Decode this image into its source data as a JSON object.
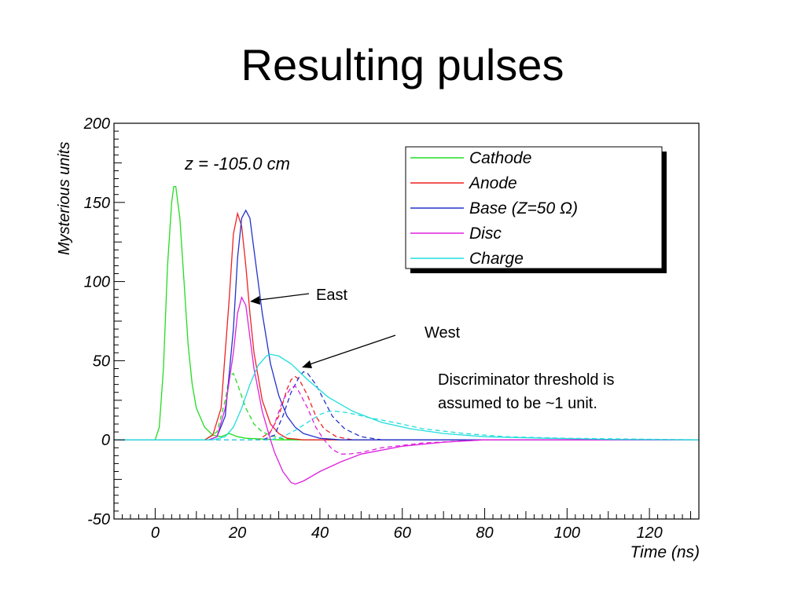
{
  "slide": {
    "title": "Resulting pulses",
    "annotations": {
      "east": "East",
      "west": "West",
      "threshold_line1": "Discriminator threshold is",
      "threshold_line2": "assumed to be ~1 unit."
    }
  },
  "chart_data": {
    "type": "line",
    "inner_label": "z = -105.0 cm",
    "xlabel": "Time  (ns)",
    "ylabel": "Mysterious units",
    "xlim": [
      -10,
      132
    ],
    "ylim": [
      -50,
      200
    ],
    "xticks": [
      "0",
      "20",
      "40",
      "60",
      "80",
      "100",
      "120"
    ],
    "yticks": [
      "-50",
      "0",
      "50",
      "100",
      "150",
      "200"
    ],
    "legend_position": "top-right",
    "grid": false,
    "legend": [
      {
        "label": "Cathode",
        "color": "#22dd22"
      },
      {
        "label": "Anode",
        "color": "#ee2222"
      },
      {
        "label": "Base  (Z=50 Ω)",
        "color": "#2233cc"
      },
      {
        "label": "Disc",
        "color": "#dd22dd"
      },
      {
        "label": "Charge",
        "color": "#22dddd"
      }
    ],
    "series": [
      {
        "name": "Cathode",
        "color": "#22dd22",
        "style": "solid",
        "points": [
          [
            -10,
            0
          ],
          [
            0,
            0
          ],
          [
            1,
            8
          ],
          [
            2,
            45
          ],
          [
            3,
            110
          ],
          [
            4,
            150
          ],
          [
            4.5,
            160
          ],
          [
            5,
            160
          ],
          [
            6,
            140
          ],
          [
            7,
            100
          ],
          [
            8,
            60
          ],
          [
            9,
            35
          ],
          [
            10,
            20
          ],
          [
            12,
            8
          ],
          [
            14,
            3
          ],
          [
            16,
            2
          ],
          [
            18,
            4
          ],
          [
            20,
            2
          ],
          [
            22,
            1
          ],
          [
            30,
            0
          ],
          [
            132,
            0
          ]
        ]
      },
      {
        "name": "Cathode",
        "color": "#22dd22",
        "style": "dashed",
        "points": [
          [
            -10,
            0
          ],
          [
            12,
            0
          ],
          [
            15,
            5
          ],
          [
            17,
            25
          ],
          [
            18,
            40
          ],
          [
            19,
            42
          ],
          [
            20,
            35
          ],
          [
            22,
            20
          ],
          [
            24,
            10
          ],
          [
            26,
            5
          ],
          [
            28,
            3
          ],
          [
            30,
            1
          ],
          [
            34,
            0
          ],
          [
            132,
            0
          ]
        ]
      },
      {
        "name": "Anode",
        "color": "#ee2222",
        "style": "solid",
        "points": [
          [
            -10,
            0
          ],
          [
            12,
            0
          ],
          [
            14,
            3
          ],
          [
            16,
            20
          ],
          [
            18,
            90
          ],
          [
            19,
            130
          ],
          [
            20,
            143
          ],
          [
            21,
            135
          ],
          [
            22,
            110
          ],
          [
            23,
            80
          ],
          [
            24,
            55
          ],
          [
            26,
            25
          ],
          [
            28,
            10
          ],
          [
            30,
            4
          ],
          [
            32,
            1
          ],
          [
            36,
            0
          ],
          [
            132,
            0
          ]
        ]
      },
      {
        "name": "Anode",
        "color": "#ee2222",
        "style": "dashed",
        "points": [
          [
            -10,
            0
          ],
          [
            25,
            0
          ],
          [
            28,
            5
          ],
          [
            30,
            15
          ],
          [
            32,
            32
          ],
          [
            33,
            38
          ],
          [
            34,
            40
          ],
          [
            35,
            38
          ],
          [
            37,
            28
          ],
          [
            39,
            15
          ],
          [
            41,
            7
          ],
          [
            44,
            2
          ],
          [
            48,
            0
          ],
          [
            132,
            0
          ]
        ]
      },
      {
        "name": "Base  (Z=50 Ω)",
        "color": "#2233cc",
        "style": "solid",
        "points": [
          [
            -10,
            0
          ],
          [
            13,
            0
          ],
          [
            15,
            2
          ],
          [
            17,
            15
          ],
          [
            19,
            70
          ],
          [
            20,
            115
          ],
          [
            21,
            140
          ],
          [
            22,
            145
          ],
          [
            23,
            140
          ],
          [
            24,
            120
          ],
          [
            26,
            80
          ],
          [
            28,
            48
          ],
          [
            30,
            28
          ],
          [
            32,
            15
          ],
          [
            34,
            8
          ],
          [
            36,
            4
          ],
          [
            40,
            1
          ],
          [
            45,
            0
          ],
          [
            132,
            0
          ]
        ]
      },
      {
        "name": "Base  (Z=50 Ω)",
        "color": "#2233cc",
        "style": "dashed",
        "points": [
          [
            -10,
            0
          ],
          [
            26,
            0
          ],
          [
            29,
            3
          ],
          [
            31,
            15
          ],
          [
            33,
            30
          ],
          [
            35,
            40
          ],
          [
            36,
            43
          ],
          [
            37,
            42
          ],
          [
            39,
            35
          ],
          [
            41,
            25
          ],
          [
            43,
            15
          ],
          [
            46,
            7
          ],
          [
            50,
            2
          ],
          [
            55,
            0
          ],
          [
            132,
            0
          ]
        ]
      },
      {
        "name": "Disc",
        "color": "#dd22dd",
        "style": "solid",
        "points": [
          [
            -10,
            0
          ],
          [
            13,
            0
          ],
          [
            15,
            2
          ],
          [
            17,
            20
          ],
          [
            19,
            55
          ],
          [
            20,
            80
          ],
          [
            21,
            90
          ],
          [
            22,
            85
          ],
          [
            23,
            65
          ],
          [
            24,
            45
          ],
          [
            26,
            18
          ],
          [
            28,
            0
          ],
          [
            29,
            -8
          ],
          [
            31,
            -20
          ],
          [
            33,
            -27
          ],
          [
            34,
            -28
          ],
          [
            36,
            -26
          ],
          [
            40,
            -20
          ],
          [
            45,
            -14
          ],
          [
            50,
            -9
          ],
          [
            60,
            -4
          ],
          [
            70,
            -1.5
          ],
          [
            80,
            0
          ],
          [
            132,
            0
          ]
        ]
      },
      {
        "name": "Disc",
        "color": "#dd22dd",
        "style": "dashed",
        "points": [
          [
            -10,
            0
          ],
          [
            27,
            0
          ],
          [
            29,
            10
          ],
          [
            31,
            25
          ],
          [
            33,
            33
          ],
          [
            34,
            34
          ],
          [
            35,
            30
          ],
          [
            37,
            20
          ],
          [
            39,
            8
          ],
          [
            41,
            0
          ],
          [
            43,
            -6
          ],
          [
            45,
            -9
          ],
          [
            47,
            -9
          ],
          [
            50,
            -8
          ],
          [
            55,
            -5
          ],
          [
            65,
            -2
          ],
          [
            80,
            0
          ],
          [
            132,
            0
          ]
        ]
      },
      {
        "name": "Charge",
        "color": "#22dddd",
        "style": "solid",
        "points": [
          [
            -10,
            0
          ],
          [
            14,
            0
          ],
          [
            17,
            2
          ],
          [
            19,
            8
          ],
          [
            21,
            20
          ],
          [
            23,
            35
          ],
          [
            25,
            47
          ],
          [
            27,
            53
          ],
          [
            28,
            54
          ],
          [
            30,
            53
          ],
          [
            33,
            48
          ],
          [
            37,
            38
          ],
          [
            42,
            27
          ],
          [
            48,
            18
          ],
          [
            55,
            11
          ],
          [
            62,
            7
          ],
          [
            70,
            4
          ],
          [
            80,
            2
          ],
          [
            95,
            1
          ],
          [
            110,
            0.3
          ],
          [
            132,
            0
          ]
        ]
      },
      {
        "name": "Charge",
        "color": "#22dddd",
        "style": "dashed",
        "points": [
          [
            -10,
            0
          ],
          [
            28,
            0
          ],
          [
            31,
            2
          ],
          [
            34,
            6
          ],
          [
            37,
            11
          ],
          [
            40,
            16
          ],
          [
            42,
            18
          ],
          [
            44,
            18
          ],
          [
            47,
            17
          ],
          [
            52,
            14
          ],
          [
            58,
            11
          ],
          [
            65,
            7
          ],
          [
            75,
            4
          ],
          [
            85,
            2
          ],
          [
            100,
            1
          ],
          [
            132,
            0
          ]
        ]
      }
    ]
  }
}
